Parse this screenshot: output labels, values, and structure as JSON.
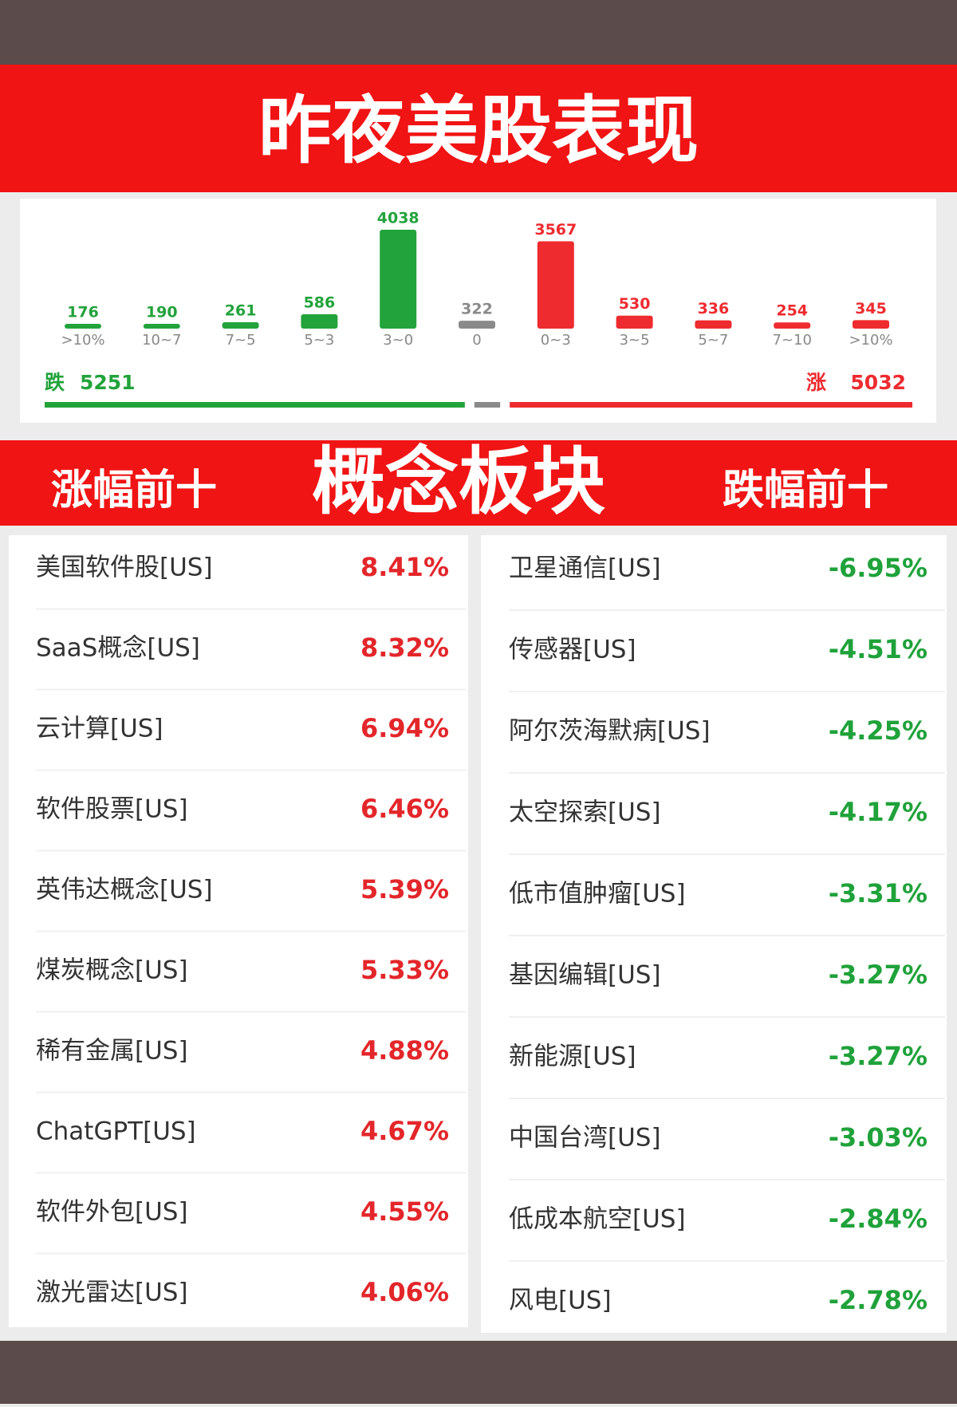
{
  "header": {
    "title": "昨夜美股表现"
  },
  "chart_data": {
    "type": "bar",
    "categories": [
      ">10%",
      "10~7",
      "7~5",
      "5~3",
      "3~0",
      "0",
      "0~3",
      "3~5",
      "5~7",
      "7~10",
      ">10%"
    ],
    "values": [
      176,
      190,
      261,
      586,
      4038,
      322,
      3567,
      530,
      336,
      254,
      345
    ],
    "colors": [
      "#22a33b",
      "#22a33b",
      "#22a33b",
      "#22a33b",
      "#22a33b",
      "#8a8a8a",
      "#ee2b2f",
      "#ee2b2f",
      "#ee2b2f",
      "#ee2b2f",
      "#ee2b2f"
    ]
  },
  "summary": {
    "fall_label": "跌",
    "fall": 5251,
    "rise_label": "涨",
    "rise": 5032
  },
  "section": {
    "left": "涨幅前十",
    "center": "概念板块",
    "right": "跌幅前十"
  },
  "gainers": [
    [
      "美国软件股[US]",
      "8.41%"
    ],
    [
      "SaaS概念[US]",
      "8.32%"
    ],
    [
      "云计算[US]",
      "6.94%"
    ],
    [
      "软件股票[US]",
      "6.46%"
    ],
    [
      "英伟达概念[US]",
      "5.39%"
    ],
    [
      "煤炭概念[US]",
      "5.33%"
    ],
    [
      "稀有金属[US]",
      "4.88%"
    ],
    [
      "ChatGPT[US]",
      "4.67%"
    ],
    [
      "软件外包[US]",
      "4.55%"
    ],
    [
      "激光雷达[US]",
      "4.06%"
    ]
  ],
  "losers": [
    [
      "卫星通信[US]",
      "-6.95%"
    ],
    [
      "传感器[US]",
      "-4.51%"
    ],
    [
      "阿尔茨海默病[US]",
      "-4.25%"
    ],
    [
      "太空探索[US]",
      "-4.17%"
    ],
    [
      "低市值肿瘤[US]",
      "-3.31%"
    ],
    [
      "基因编辑[US]",
      "-3.27%"
    ],
    [
      "新能源[US]",
      "-3.27%"
    ],
    [
      "中国台湾[US]",
      "-3.03%"
    ],
    [
      "低成本航空[US]",
      "-2.84%"
    ],
    [
      "风电[US]",
      "-2.78%"
    ]
  ]
}
